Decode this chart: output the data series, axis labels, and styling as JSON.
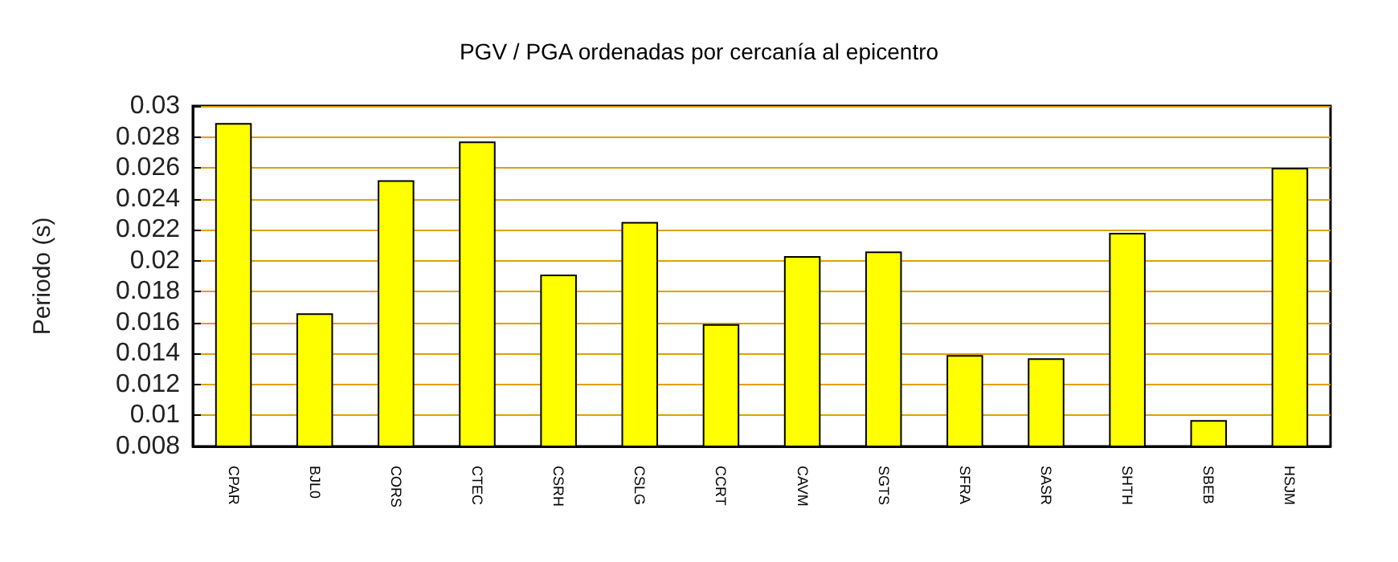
{
  "chart_data": {
    "type": "bar",
    "title": "PGV / PGA ordenadas por cercanía al epicentro",
    "ylabel": "Periodo (s)",
    "categories": [
      "CPAR",
      "BJL0",
      "CORS",
      "CTEC",
      "CSRH",
      "CSLG",
      "CCRT",
      "CAVM",
      "SGTS",
      "SFRA",
      "SASR",
      "SHTH",
      "SBEB",
      "HSJM"
    ],
    "values": [
      0.0289,
      0.0166,
      0.0252,
      0.0277,
      0.0191,
      0.0225,
      0.0159,
      0.0203,
      0.0206,
      0.0139,
      0.0137,
      0.0218,
      0.0097,
      0.026
    ],
    "color": "#ffff00",
    "ylim": [
      0.008,
      0.03
    ],
    "yticks": [
      0.008,
      0.01,
      0.012,
      0.014,
      0.016,
      0.018,
      0.02,
      0.022,
      0.024,
      0.026,
      0.028,
      0.03
    ],
    "grid": "y"
  }
}
